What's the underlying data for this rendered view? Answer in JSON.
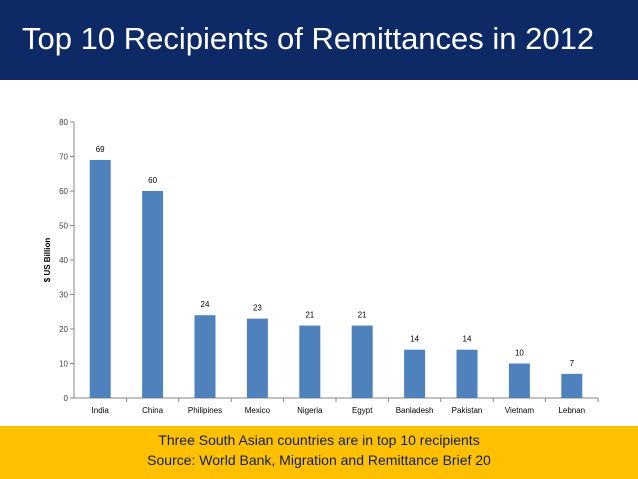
{
  "slide": {
    "title": "Top 10 Recipients of Remittances in 2012",
    "footer_line1": "Three South Asian countries are in top 10 recipients",
    "footer_line2": "Source: World Bank, Migration and Remittance Brief 20"
  },
  "colors": {
    "title_bg": "#0d2a67",
    "footer_bg": "#ffc000",
    "bar": "#4f81bd"
  },
  "chart_data": {
    "type": "bar",
    "title": "",
    "xlabel": "",
    "ylabel": "$ US Billion",
    "ylim": [
      0,
      80
    ],
    "yticks": [
      0,
      10,
      20,
      30,
      40,
      50,
      60,
      70,
      80
    ],
    "grid": false,
    "legend": "none",
    "categories": [
      "India",
      "China",
      "Philipines",
      "Mexico",
      "Nigeria",
      "Egypt",
      "Banladesh",
      "Pakistan",
      "Vietnam",
      "Lebnan"
    ],
    "values": [
      69,
      60,
      24,
      23,
      21,
      21,
      14,
      14,
      10,
      7
    ]
  }
}
